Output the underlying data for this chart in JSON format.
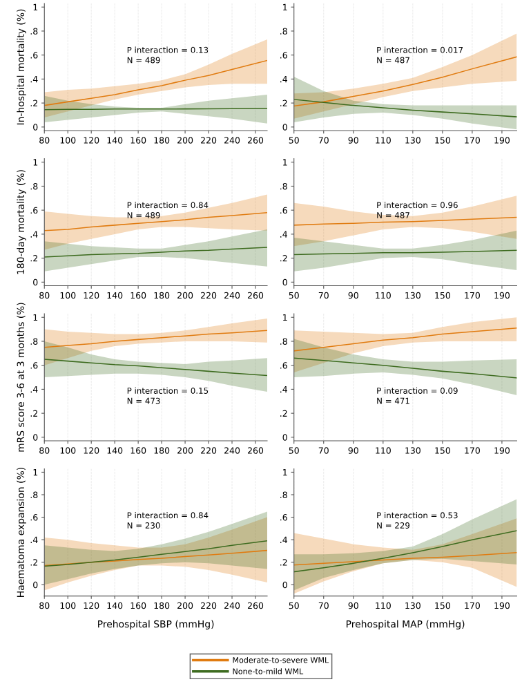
{
  "chart_data": [
    {
      "type": "line",
      "ylabel": "In-hospital mortality (%)",
      "xlim": [
        80,
        270
      ],
      "xticks": [
        80,
        100,
        120,
        140,
        160,
        180,
        200,
        220,
        240,
        260
      ],
      "ylim": [
        -0.03,
        1.03
      ],
      "yticks": [
        0,
        {
          "value": 0.2,
          "label": ".2"
        },
        {
          "value": 0.4,
          "label": ".4"
        },
        {
          "value": 0.6,
          "label": ".6"
        },
        {
          "value": 0.8,
          "label": ".8"
        },
        1
      ],
      "grid": "x",
      "annotations": [
        "P interaction = 0.13",
        "N = 489"
      ],
      "x": [
        80,
        100,
        120,
        140,
        160,
        180,
        200,
        220,
        240,
        270
      ],
      "series": [
        {
          "color": "#e07b10",
          "values": [
            0.18,
            0.21,
            0.24,
            0.27,
            0.31,
            0.345,
            0.39,
            0.43,
            0.48,
            0.555
          ],
          "lower": [
            0.08,
            0.13,
            0.18,
            0.23,
            0.27,
            0.3,
            0.33,
            0.35,
            0.36,
            0.36
          ],
          "upper": [
            0.29,
            0.31,
            0.32,
            0.34,
            0.36,
            0.39,
            0.44,
            0.52,
            0.61,
            0.73
          ]
        },
        {
          "color": "#3d6b1f",
          "values": [
            0.145,
            0.147,
            0.148,
            0.15,
            0.15,
            0.15,
            0.151,
            0.152,
            0.153,
            0.155
          ],
          "lower": [
            0.04,
            0.06,
            0.08,
            0.1,
            0.12,
            0.13,
            0.11,
            0.09,
            0.07,
            0.03
          ],
          "upper": [
            0.26,
            0.22,
            0.19,
            0.17,
            0.16,
            0.16,
            0.19,
            0.22,
            0.24,
            0.27
          ]
        }
      ]
    },
    {
      "type": "line",
      "xlim": [
        50,
        200
      ],
      "xticks": [
        50,
        70,
        90,
        110,
        130,
        150,
        170,
        190
      ],
      "ylim": [
        -0.03,
        1.03
      ],
      "yticks": [
        0,
        {
          "value": 0.2,
          "label": ".2"
        },
        {
          "value": 0.4,
          "label": ".4"
        },
        {
          "value": 0.6,
          "label": ".6"
        },
        {
          "value": 0.8,
          "label": ".8"
        },
        1
      ],
      "grid": "x",
      "annotations": [
        "P interaction = 0.017",
        "N = 487"
      ],
      "x": [
        50,
        70,
        90,
        110,
        130,
        150,
        170,
        200
      ],
      "series": [
        {
          "color": "#e07b10",
          "values": [
            0.175,
            0.21,
            0.255,
            0.3,
            0.355,
            0.415,
            0.485,
            0.585
          ],
          "lower": [
            0.07,
            0.13,
            0.19,
            0.25,
            0.3,
            0.33,
            0.36,
            0.385
          ],
          "upper": [
            0.28,
            0.29,
            0.32,
            0.36,
            0.41,
            0.5,
            0.6,
            0.78
          ]
        },
        {
          "color": "#3d6b1f",
          "values": [
            0.23,
            0.205,
            0.18,
            0.16,
            0.14,
            0.125,
            0.11,
            0.085
          ],
          "lower": [
            0.04,
            0.08,
            0.11,
            0.12,
            0.1,
            0.07,
            0.03,
            -0.02
          ],
          "upper": [
            0.42,
            0.3,
            0.22,
            0.19,
            0.18,
            0.18,
            0.18,
            0.18
          ]
        }
      ]
    },
    {
      "type": "line",
      "ylabel": "180-day mortality (%)",
      "xlim": [
        80,
        270
      ],
      "xticks": [
        80,
        100,
        120,
        140,
        160,
        180,
        200,
        220,
        240,
        260
      ],
      "ylim": [
        -0.03,
        1.03
      ],
      "yticks": [
        0,
        {
          "value": 0.2,
          "label": ".2"
        },
        {
          "value": 0.4,
          "label": ".4"
        },
        {
          "value": 0.6,
          "label": ".6"
        },
        {
          "value": 0.8,
          "label": ".8"
        },
        1
      ],
      "grid": "x",
      "annotations": [
        "P interaction = 0.84",
        "N = 489"
      ],
      "x": [
        80,
        100,
        120,
        140,
        160,
        180,
        200,
        220,
        240,
        270
      ],
      "series": [
        {
          "color": "#e07b10",
          "values": [
            0.43,
            0.44,
            0.46,
            0.475,
            0.49,
            0.505,
            0.52,
            0.54,
            0.555,
            0.58
          ],
          "lower": [
            0.27,
            0.32,
            0.36,
            0.4,
            0.44,
            0.46,
            0.46,
            0.45,
            0.44,
            0.43
          ],
          "upper": [
            0.59,
            0.57,
            0.55,
            0.54,
            0.54,
            0.55,
            0.58,
            0.62,
            0.66,
            0.73
          ]
        },
        {
          "color": "#3d6b1f",
          "values": [
            0.21,
            0.22,
            0.23,
            0.235,
            0.24,
            0.25,
            0.26,
            0.265,
            0.275,
            0.29
          ],
          "lower": [
            0.09,
            0.12,
            0.15,
            0.18,
            0.21,
            0.21,
            0.2,
            0.18,
            0.16,
            0.13
          ],
          "upper": [
            0.34,
            0.32,
            0.3,
            0.29,
            0.28,
            0.28,
            0.31,
            0.34,
            0.38,
            0.44
          ]
        }
      ]
    },
    {
      "type": "line",
      "xlim": [
        50,
        200
      ],
      "xticks": [
        50,
        70,
        90,
        110,
        130,
        150,
        170,
        190
      ],
      "ylim": [
        -0.03,
        1.03
      ],
      "yticks": [
        0,
        {
          "value": 0.2,
          "label": ".2"
        },
        {
          "value": 0.4,
          "label": ".4"
        },
        {
          "value": 0.6,
          "label": ".6"
        },
        {
          "value": 0.8,
          "label": ".8"
        },
        1
      ],
      "grid": "x",
      "annotations": [
        "P interaction = 0.96",
        "N = 487"
      ],
      "x": [
        50,
        70,
        90,
        110,
        130,
        150,
        170,
        200
      ],
      "series": [
        {
          "color": "#e07b10",
          "values": [
            0.475,
            0.485,
            0.49,
            0.5,
            0.505,
            0.515,
            0.525,
            0.54
          ],
          "lower": [
            0.3,
            0.34,
            0.39,
            0.44,
            0.46,
            0.45,
            0.42,
            0.36
          ],
          "upper": [
            0.66,
            0.63,
            0.59,
            0.56,
            0.55,
            0.58,
            0.63,
            0.72
          ]
        },
        {
          "color": "#3d6b1f",
          "values": [
            0.23,
            0.235,
            0.24,
            0.245,
            0.245,
            0.25,
            0.255,
            0.265
          ],
          "lower": [
            0.09,
            0.12,
            0.16,
            0.2,
            0.21,
            0.19,
            0.15,
            0.1
          ],
          "upper": [
            0.37,
            0.34,
            0.31,
            0.28,
            0.28,
            0.31,
            0.35,
            0.43
          ]
        }
      ]
    },
    {
      "type": "line",
      "ylabel": "mRS score 3-6 at 3 months (%)",
      "xlim": [
        80,
        270
      ],
      "xticks": [
        80,
        100,
        120,
        140,
        160,
        180,
        200,
        220,
        240,
        260
      ],
      "ylim": [
        -0.03,
        1.03
      ],
      "yticks": [
        0,
        {
          "value": 0.2,
          "label": ".2"
        },
        {
          "value": 0.4,
          "label": ".4"
        },
        {
          "value": 0.6,
          "label": ".6"
        },
        {
          "value": 0.8,
          "label": ".8"
        },
        1
      ],
      "grid": "x",
      "annotations": [
        "P interaction = 0.15",
        "N = 473"
      ],
      "x": [
        80,
        100,
        120,
        140,
        160,
        180,
        200,
        220,
        240,
        270
      ],
      "series": [
        {
          "color": "#e07b10",
          "values": [
            0.75,
            0.765,
            0.78,
            0.8,
            0.815,
            0.83,
            0.845,
            0.86,
            0.87,
            0.89
          ],
          "lower": [
            0.6,
            0.66,
            0.72,
            0.76,
            0.78,
            0.79,
            0.8,
            0.8,
            0.8,
            0.79
          ],
          "upper": [
            0.9,
            0.88,
            0.87,
            0.86,
            0.86,
            0.87,
            0.89,
            0.92,
            0.95,
            0.99
          ]
        },
        {
          "color": "#3d6b1f",
          "values": [
            0.65,
            0.635,
            0.62,
            0.605,
            0.595,
            0.58,
            0.565,
            0.55,
            0.535,
            0.515
          ],
          "lower": [
            0.5,
            0.51,
            0.52,
            0.53,
            0.53,
            0.52,
            0.5,
            0.47,
            0.43,
            0.38
          ],
          "upper": [
            0.8,
            0.75,
            0.69,
            0.65,
            0.63,
            0.62,
            0.61,
            0.63,
            0.64,
            0.66
          ]
        }
      ]
    },
    {
      "type": "line",
      "xlim": [
        50,
        200
      ],
      "xticks": [
        50,
        70,
        90,
        110,
        130,
        150,
        170,
        190
      ],
      "ylim": [
        -0.03,
        1.03
      ],
      "yticks": [
        0,
        {
          "value": 0.2,
          "label": ".2"
        },
        {
          "value": 0.4,
          "label": ".4"
        },
        {
          "value": 0.6,
          "label": ".6"
        },
        {
          "value": 0.8,
          "label": ".8"
        },
        1
      ],
      "grid": "x",
      "annotations": [
        "P interaction = 0.09",
        "N = 471"
      ],
      "x": [
        50,
        70,
        90,
        110,
        130,
        150,
        170,
        200
      ],
      "series": [
        {
          "color": "#e07b10",
          "values": [
            0.72,
            0.75,
            0.78,
            0.81,
            0.83,
            0.86,
            0.88,
            0.91
          ],
          "lower": [
            0.54,
            0.62,
            0.7,
            0.76,
            0.79,
            0.8,
            0.8,
            0.8
          ],
          "upper": [
            0.89,
            0.88,
            0.87,
            0.86,
            0.87,
            0.92,
            0.96,
            1.0
          ]
        },
        {
          "color": "#3d6b1f",
          "values": [
            0.66,
            0.64,
            0.62,
            0.6,
            0.575,
            0.55,
            0.53,
            0.495
          ],
          "lower": [
            0.5,
            0.51,
            0.53,
            0.54,
            0.52,
            0.49,
            0.44,
            0.35
          ],
          "upper": [
            0.82,
            0.75,
            0.69,
            0.65,
            0.63,
            0.63,
            0.64,
            0.65
          ]
        }
      ]
    },
    {
      "type": "line",
      "ylabel": "Haematoma expansion (%)",
      "xlabel": "Prehospital SBP (mmHg)",
      "xlim": [
        80,
        270
      ],
      "xticks": [
        80,
        100,
        120,
        140,
        160,
        180,
        200,
        220,
        240,
        260
      ],
      "ylim": [
        -0.1,
        1.03
      ],
      "yticks": [
        0,
        {
          "value": 0.2,
          "label": ".2"
        },
        {
          "value": 0.4,
          "label": ".4"
        },
        {
          "value": 0.6,
          "label": ".6"
        },
        {
          "value": 0.8,
          "label": ".8"
        },
        1
      ],
      "grid": "x",
      "annotations": [
        "P interaction = 0.84",
        "N = 230"
      ],
      "x": [
        80,
        100,
        120,
        140,
        160,
        180,
        200,
        220,
        240,
        270
      ],
      "series": [
        {
          "color": "#e07b10",
          "values": [
            0.17,
            0.185,
            0.2,
            0.21,
            0.225,
            0.235,
            0.25,
            0.265,
            0.28,
            0.305
          ],
          "lower": [
            -0.05,
            0.02,
            0.08,
            0.13,
            0.17,
            0.17,
            0.16,
            0.13,
            0.09,
            0.02
          ],
          "upper": [
            0.42,
            0.4,
            0.37,
            0.35,
            0.33,
            0.33,
            0.36,
            0.42,
            0.49,
            0.6
          ]
        },
        {
          "color": "#3d6b1f",
          "values": [
            0.165,
            0.18,
            0.2,
            0.22,
            0.245,
            0.27,
            0.295,
            0.32,
            0.35,
            0.39
          ],
          "lower": [
            0.0,
            0.05,
            0.1,
            0.14,
            0.17,
            0.19,
            0.2,
            0.19,
            0.17,
            0.14
          ],
          "upper": [
            0.35,
            0.33,
            0.31,
            0.3,
            0.32,
            0.36,
            0.41,
            0.47,
            0.54,
            0.65
          ]
        }
      ]
    },
    {
      "type": "line",
      "xlabel": "Prehospital MAP (mmHg)",
      "xlim": [
        50,
        200
      ],
      "xticks": [
        50,
        70,
        90,
        110,
        130,
        150,
        170,
        190
      ],
      "ylim": [
        -0.1,
        1.03
      ],
      "yticks": [
        0,
        {
          "value": 0.2,
          "label": ".2"
        },
        {
          "value": 0.4,
          "label": ".4"
        },
        {
          "value": 0.6,
          "label": ".6"
        },
        {
          "value": 0.8,
          "label": ".8"
        },
        1
      ],
      "grid": "x",
      "legend": "bottom",
      "annotations": [
        "P interaction = 0.53",
        "N = 229"
      ],
      "x": [
        50,
        70,
        90,
        110,
        130,
        150,
        170,
        200
      ],
      "series": [
        {
          "name": "Moderate-to-severe WML",
          "color": "#e07b10",
          "values": [
            0.175,
            0.19,
            0.205,
            0.22,
            0.235,
            0.245,
            0.26,
            0.285
          ],
          "lower": [
            -0.08,
            0.03,
            0.12,
            0.19,
            0.22,
            0.2,
            0.15,
            -0.02
          ],
          "upper": [
            0.46,
            0.41,
            0.36,
            0.33,
            0.31,
            0.36,
            0.45,
            0.59
          ]
        },
        {
          "name": "None-to-mild WML",
          "color": "#3d6b1f",
          "values": [
            0.115,
            0.15,
            0.19,
            0.235,
            0.285,
            0.34,
            0.4,
            0.48
          ],
          "lower": [
            -0.05,
            0.06,
            0.13,
            0.19,
            0.22,
            0.23,
            0.21,
            0.18
          ],
          "upper": [
            0.27,
            0.27,
            0.28,
            0.3,
            0.34,
            0.45,
            0.58,
            0.76
          ]
        }
      ]
    }
  ]
}
